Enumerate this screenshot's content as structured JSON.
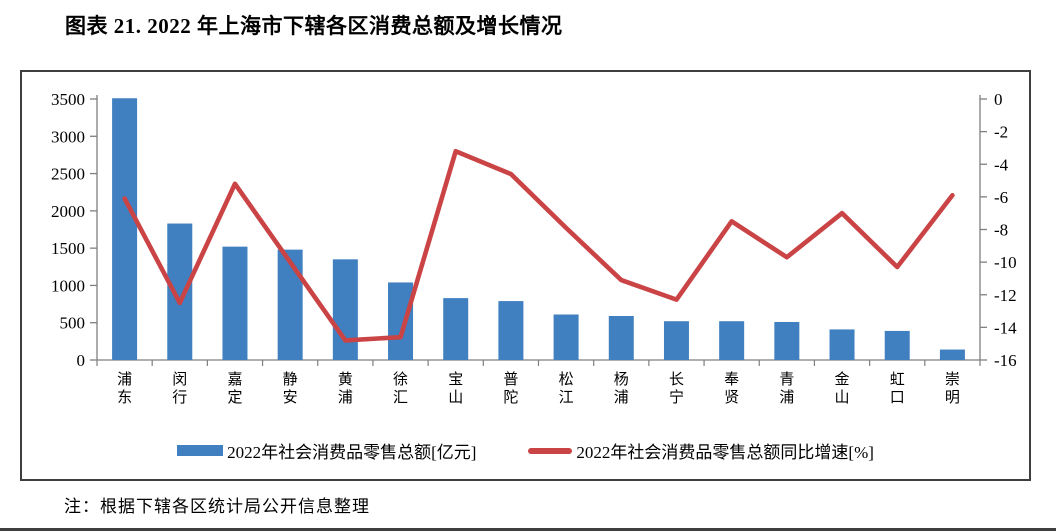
{
  "title": "图表 21. 2022 年上海市下辖各区消费总额及增长情况",
  "note": "注：根据下辖各区统计局公开信息整理",
  "colors": {
    "bar": "#4080C1",
    "line": "#CA4345",
    "axis": "#7f7f7f",
    "border": "#3f3f3f",
    "text": "#000000"
  },
  "legend": {
    "bar_label": "2022年社会消费品零售总额[亿元]",
    "line_label": "2022年社会消费品零售总额同比增速[%]"
  },
  "chart_data": {
    "type": "bar",
    "subtype": "bar+line dual-axis",
    "title": "2022 年上海市下辖各区消费总额及增长情况",
    "categories": [
      "浦东",
      "闵行",
      "嘉定",
      "静安",
      "黄浦",
      "徐汇",
      "宝山",
      "普陀",
      "松江",
      "杨浦",
      "长宁",
      "奉贤",
      "青浦",
      "金山",
      "虹口",
      "崇明"
    ],
    "series": [
      {
        "name": "2022年社会消费品零售总额[亿元]",
        "type": "bar",
        "axis": "left",
        "values": [
          3510,
          1830,
          1520,
          1480,
          1350,
          1040,
          830,
          790,
          610,
          590,
          520,
          520,
          510,
          410,
          390,
          140
        ]
      },
      {
        "name": "2022年社会消费品零售总额同比增速[%]",
        "type": "line",
        "axis": "right",
        "values": [
          -6.1,
          -12.5,
          -5.2,
          -10.0,
          -14.8,
          -14.6,
          -3.2,
          -4.6,
          -7.9,
          -11.1,
          -12.3,
          -7.5,
          -9.7,
          -7.0,
          -10.3,
          -5.9
        ]
      }
    ],
    "left_axis": {
      "min": 0,
      "max": 3500,
      "step": 500,
      "ticks": [
        "0",
        "500",
        "1000",
        "1500",
        "2000",
        "2500",
        "3000",
        "3500"
      ]
    },
    "right_axis": {
      "min": -16,
      "max": 0,
      "step": 2,
      "ticks": [
        "0",
        "-2",
        "-4",
        "-6",
        "-8",
        "-10",
        "-12",
        "-14",
        "-16"
      ]
    },
    "grid": false,
    "legend_position": "bottom"
  }
}
